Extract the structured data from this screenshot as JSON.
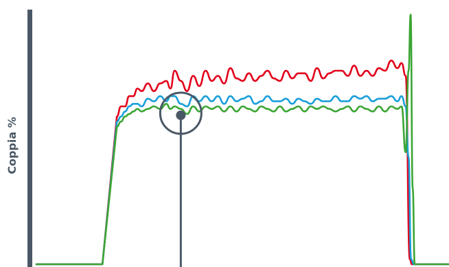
{
  "chart_data": {
    "type": "line",
    "ylabel": "Coppia %",
    "xlabel": "",
    "title": "",
    "xlim": [
      0,
      100
    ],
    "ylim": [
      0,
      100
    ],
    "grid": false,
    "legend": "none",
    "axis_color": "#4a5866",
    "series": [
      {
        "color": "#e2001a",
        "points": [
          [
            0,
            0
          ],
          [
            16,
            0
          ],
          [
            19.5,
            58
          ],
          [
            20.5,
            62
          ],
          [
            21.5,
            62
          ],
          [
            22.5,
            66
          ],
          [
            23.5,
            66
          ],
          [
            24.5,
            69
          ],
          [
            25.5,
            68
          ],
          [
            27,
            71
          ],
          [
            28.5,
            68
          ],
          [
            30,
            71
          ],
          [
            31.5,
            72
          ],
          [
            32.5,
            69
          ],
          [
            33.5,
            76
          ],
          [
            35,
            72
          ],
          [
            36.5,
            68
          ],
          [
            38,
            74
          ],
          [
            39.5,
            70
          ],
          [
            41,
            76
          ],
          [
            42.5,
            72
          ],
          [
            44,
            74
          ],
          [
            45.5,
            71
          ],
          [
            47,
            77
          ],
          [
            48.5,
            73
          ],
          [
            50,
            72
          ],
          [
            51.5,
            75
          ],
          [
            53,
            72
          ],
          [
            54.5,
            74
          ],
          [
            56,
            76
          ],
          [
            57.5,
            73
          ],
          [
            59,
            72
          ],
          [
            60.5,
            76
          ],
          [
            62,
            73
          ],
          [
            63.5,
            75
          ],
          [
            65,
            75
          ],
          [
            66.5,
            72
          ],
          [
            68,
            77
          ],
          [
            69.5,
            73
          ],
          [
            71,
            75
          ],
          [
            72.5,
            76
          ],
          [
            74,
            76
          ],
          [
            75.5,
            74
          ],
          [
            77,
            78
          ],
          [
            78.5,
            74
          ],
          [
            80,
            76
          ],
          [
            81.5,
            74
          ],
          [
            83,
            77
          ],
          [
            84.5,
            76
          ],
          [
            86,
            80
          ],
          [
            87.5,
            77
          ],
          [
            88.5,
            79
          ],
          [
            89.5,
            74
          ],
          [
            90.5,
            2
          ],
          [
            91,
            0
          ],
          [
            92,
            0
          ],
          [
            100,
            0
          ]
        ]
      },
      {
        "color": "#1a9fd9",
        "points": [
          [
            0,
            0
          ],
          [
            16,
            0
          ],
          [
            19.5,
            56
          ],
          [
            20.5,
            58
          ],
          [
            21.5,
            60
          ],
          [
            22.5,
            62
          ],
          [
            23.5,
            63
          ],
          [
            24.5,
            63
          ],
          [
            25.5,
            62
          ],
          [
            27,
            65
          ],
          [
            28.5,
            64
          ],
          [
            30,
            66
          ],
          [
            31.5,
            64
          ],
          [
            32.5,
            66
          ],
          [
            33.5,
            66
          ],
          [
            35,
            63
          ],
          [
            36.5,
            62
          ],
          [
            38,
            66
          ],
          [
            39.5,
            64
          ],
          [
            41,
            66
          ],
          [
            42.5,
            64
          ],
          [
            44,
            66
          ],
          [
            45.5,
            63
          ],
          [
            47,
            66
          ],
          [
            48.5,
            64
          ],
          [
            50,
            65
          ],
          [
            51.5,
            66
          ],
          [
            53,
            63
          ],
          [
            54.5,
            64
          ],
          [
            56,
            66
          ],
          [
            57.5,
            64
          ],
          [
            59,
            64
          ],
          [
            60.5,
            65
          ],
          [
            62,
            63
          ],
          [
            63.5,
            65
          ],
          [
            65,
            64
          ],
          [
            66.5,
            63
          ],
          [
            68,
            65
          ],
          [
            69.5,
            64
          ],
          [
            71,
            64
          ],
          [
            72.5,
            66
          ],
          [
            74,
            64
          ],
          [
            75.5,
            64
          ],
          [
            77,
            66
          ],
          [
            78.5,
            65
          ],
          [
            80,
            66
          ],
          [
            81.5,
            64
          ],
          [
            83,
            65
          ],
          [
            84.5,
            65
          ],
          [
            86,
            66
          ],
          [
            87.5,
            64
          ],
          [
            88.5,
            66
          ],
          [
            89.5,
            62
          ],
          [
            90.2,
            42
          ],
          [
            90.8,
            2
          ],
          [
            91.5,
            0
          ],
          [
            100,
            0
          ]
        ]
      },
      {
        "color": "#3ca535",
        "points": [
          [
            0,
            0
          ],
          [
            16,
            0
          ],
          [
            19.5,
            54
          ],
          [
            20.5,
            56
          ],
          [
            21.5,
            58
          ],
          [
            22.5,
            59
          ],
          [
            23.5,
            60
          ],
          [
            24.5,
            61
          ],
          [
            25.5,
            60
          ],
          [
            27,
            61
          ],
          [
            28.5,
            62
          ],
          [
            30,
            61
          ],
          [
            31.5,
            63
          ],
          [
            32.5,
            61
          ],
          [
            33.5,
            62
          ],
          [
            35,
            61
          ],
          [
            36.5,
            59
          ],
          [
            38,
            62
          ],
          [
            39.5,
            60
          ],
          [
            41,
            62
          ],
          [
            42.5,
            61
          ],
          [
            44,
            62
          ],
          [
            45.5,
            60
          ],
          [
            47,
            62
          ],
          [
            48.5,
            60
          ],
          [
            50,
            62
          ],
          [
            51.5,
            61
          ],
          [
            53,
            60
          ],
          [
            54.5,
            62
          ],
          [
            56,
            61
          ],
          [
            57.5,
            60
          ],
          [
            59,
            62
          ],
          [
            60.5,
            60
          ],
          [
            62,
            61
          ],
          [
            63.5,
            62
          ],
          [
            65,
            60
          ],
          [
            66.5,
            62
          ],
          [
            68,
            61
          ],
          [
            69.5,
            62
          ],
          [
            71,
            61
          ],
          [
            72.5,
            60
          ],
          [
            74,
            61
          ],
          [
            75.5,
            62
          ],
          [
            77,
            60
          ],
          [
            78.5,
            62
          ],
          [
            80,
            61
          ],
          [
            81.5,
            60
          ],
          [
            83,
            62
          ],
          [
            84.5,
            60
          ],
          [
            86,
            62
          ],
          [
            87.5,
            61
          ],
          [
            88.5,
            62
          ],
          [
            89.5,
            44
          ],
          [
            90.2,
            76
          ],
          [
            90.7,
            98
          ],
          [
            91.2,
            30
          ],
          [
            91.7,
            0
          ],
          [
            92.5,
            0
          ],
          [
            100,
            0
          ]
        ]
      }
    ],
    "marker": {
      "x": 35,
      "y": 58.5
    }
  }
}
